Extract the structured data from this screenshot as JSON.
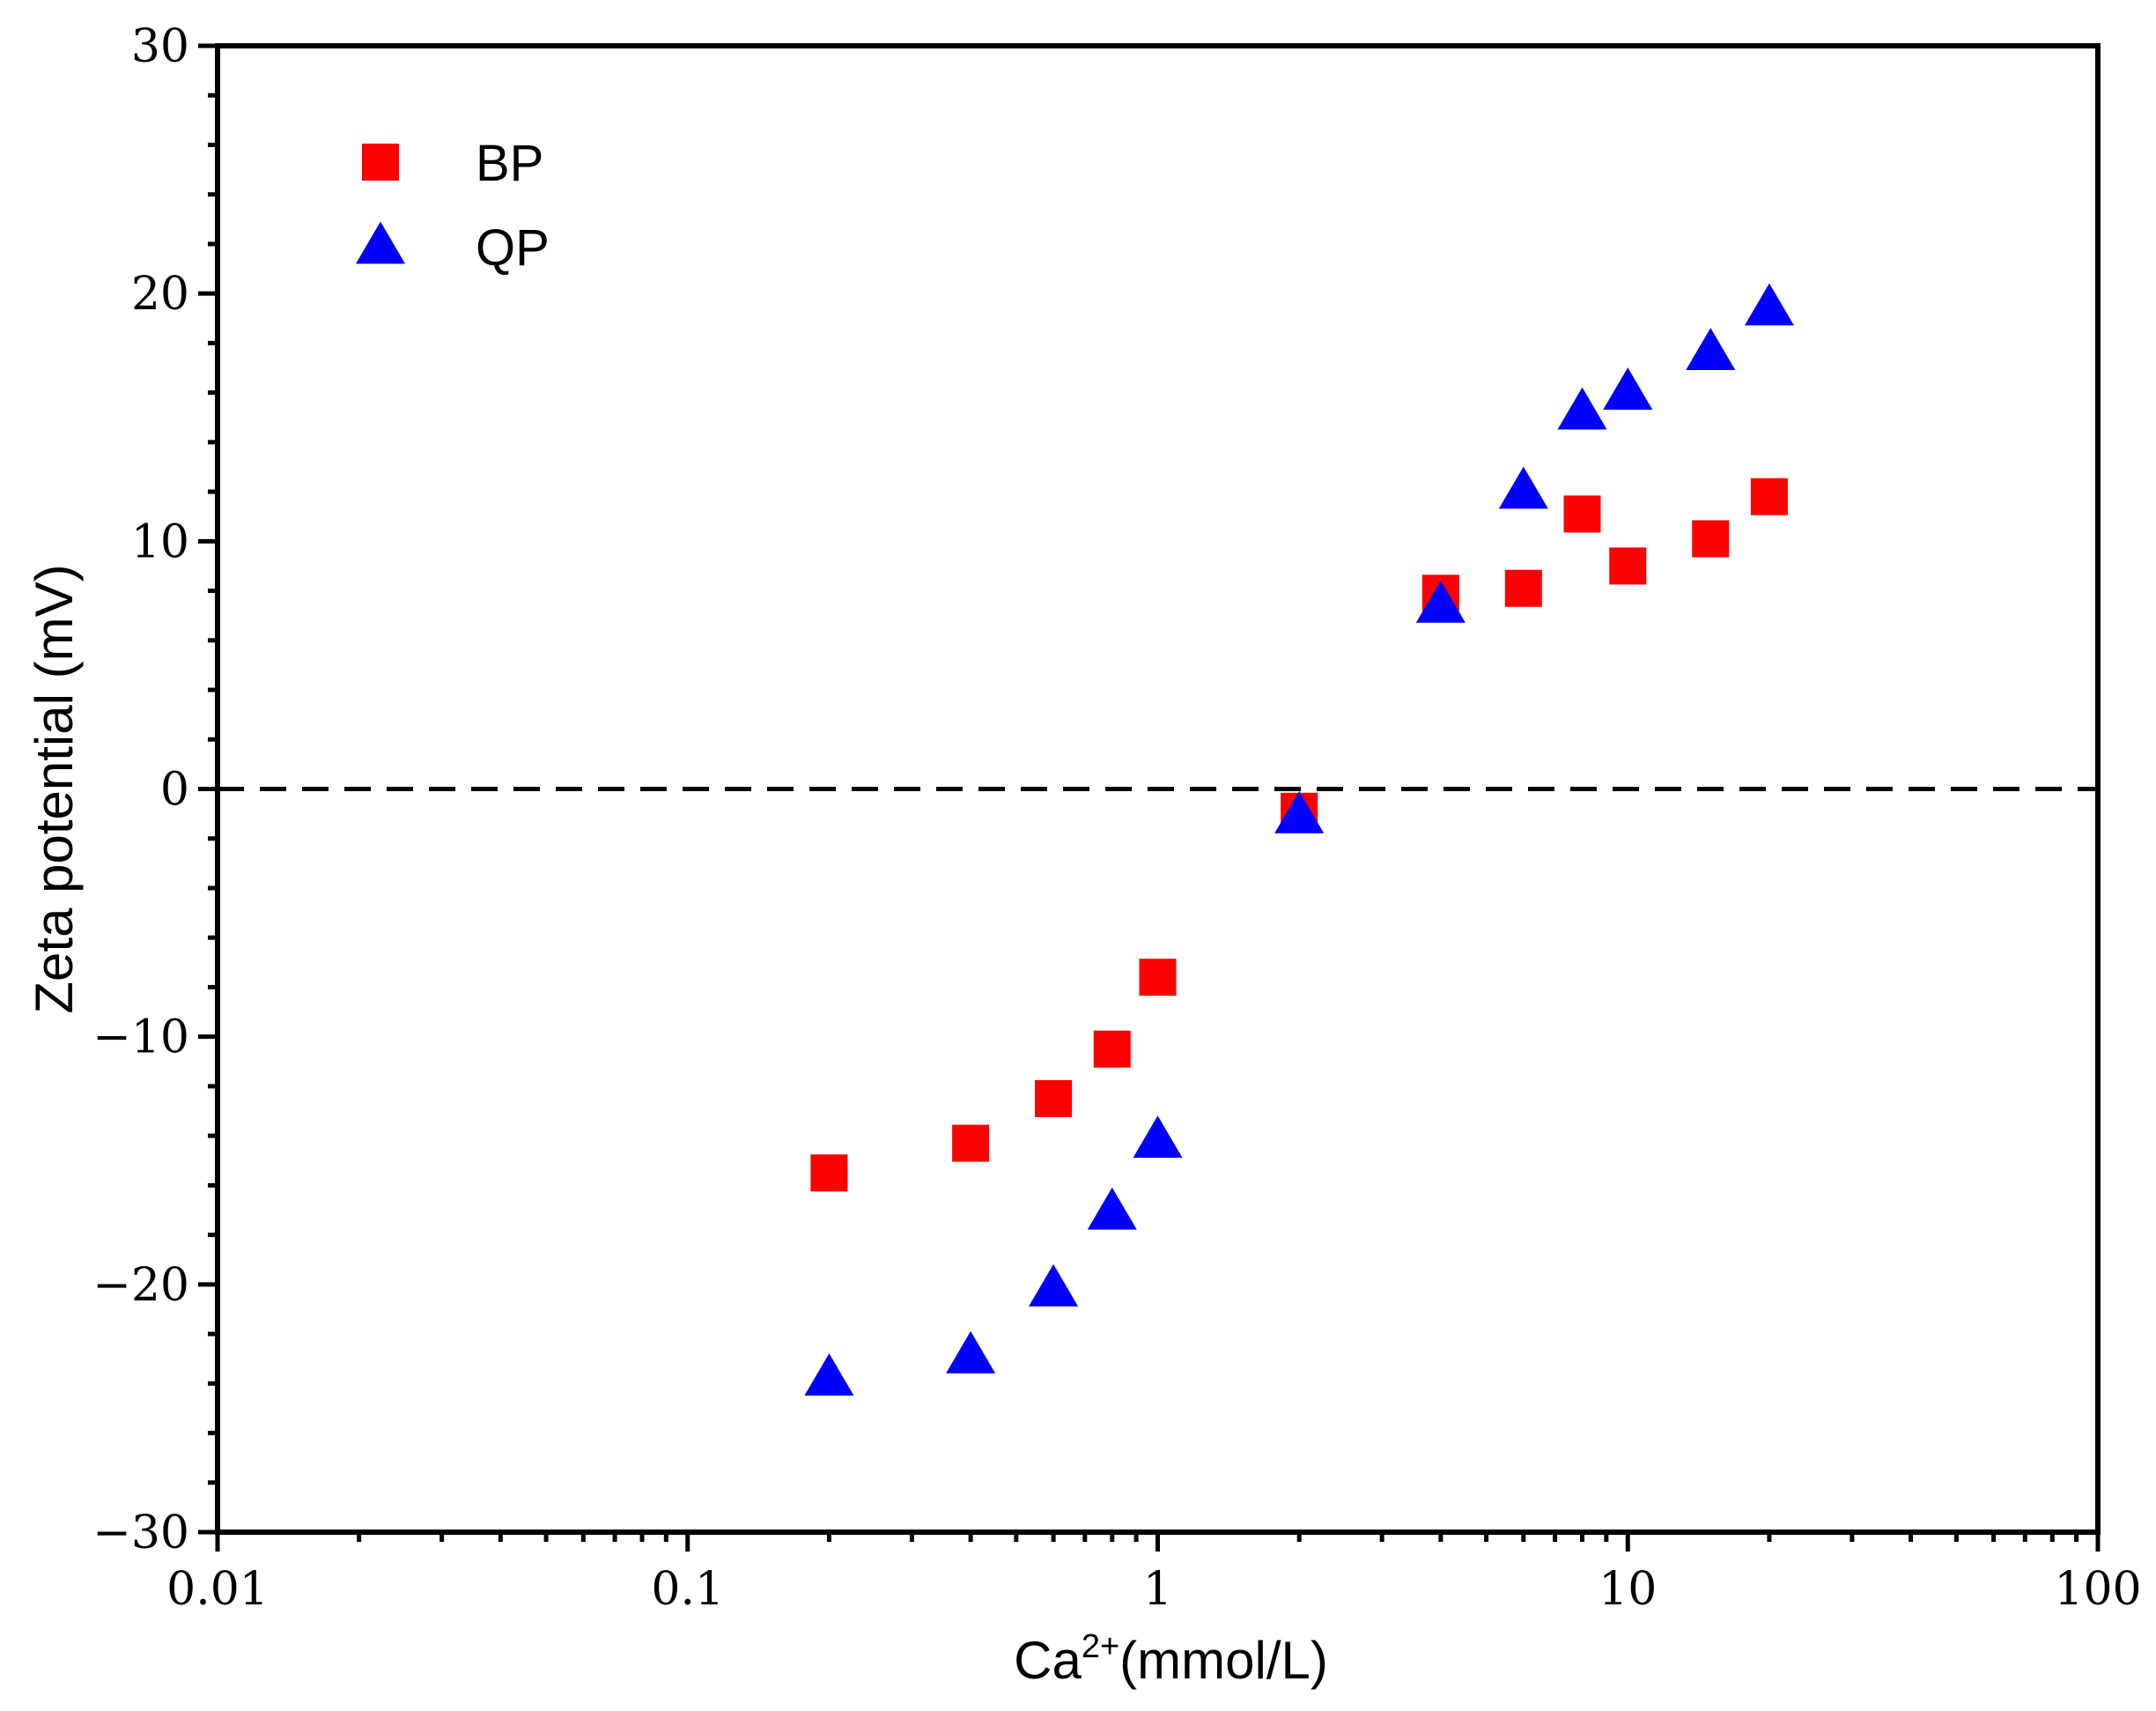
{
  "chart_data": {
    "type": "scatter",
    "title": "",
    "xlabel": {
      "base": "Ca",
      "superscript": "2+",
      "suffix": "(mmol/L)"
    },
    "ylabel": "Zeta potential (mV)",
    "xscale": "log",
    "xlim": [
      0.01,
      100
    ],
    "ylim": [
      -30,
      30
    ],
    "x_ticks": [
      0.01,
      0.1,
      1,
      10,
      100
    ],
    "x_tick_labels": [
      "0.01",
      "0.1",
      "1",
      "10",
      "100"
    ],
    "y_ticks": [
      -30,
      -20,
      -10,
      0,
      10,
      20,
      30
    ],
    "y_tick_labels": [
      "−30",
      "−20",
      "−10",
      "0",
      "10",
      "20",
      "30"
    ],
    "reference_line": {
      "y": 0,
      "style": "dashed"
    },
    "grid": false,
    "legend_position": "top-left",
    "series": [
      {
        "name": "BP",
        "marker": "square",
        "color": "#ff0000",
        "points": [
          {
            "x": 0.2,
            "y": -15.5
          },
          {
            "x": 0.4,
            "y": -14.3
          },
          {
            "x": 0.6,
            "y": -12.5
          },
          {
            "x": 0.8,
            "y": -10.5
          },
          {
            "x": 1,
            "y": -7.6
          },
          {
            "x": 2,
            "y": -0.9
          },
          {
            "x": 4,
            "y": 7.9
          },
          {
            "x": 6,
            "y": 8.1
          },
          {
            "x": 8,
            "y": 11.1
          },
          {
            "x": 10,
            "y": 9.0
          },
          {
            "x": 15,
            "y": 10.1
          },
          {
            "x": 20,
            "y": 11.8
          }
        ]
      },
      {
        "name": "QP",
        "marker": "triangle",
        "color": "#0000ff",
        "points": [
          {
            "x": 0.2,
            "y": -23.8
          },
          {
            "x": 0.4,
            "y": -22.9
          },
          {
            "x": 0.6,
            "y": -20.2
          },
          {
            "x": 0.8,
            "y": -17.1
          },
          {
            "x": 1,
            "y": -14.2
          },
          {
            "x": 2,
            "y": -1.1
          },
          {
            "x": 4,
            "y": 7.4
          },
          {
            "x": 6,
            "y": 12.0
          },
          {
            "x": 8,
            "y": 15.2
          },
          {
            "x": 10,
            "y": 16.0
          },
          {
            "x": 15,
            "y": 17.6
          },
          {
            "x": 20,
            "y": 19.4
          }
        ]
      }
    ]
  }
}
